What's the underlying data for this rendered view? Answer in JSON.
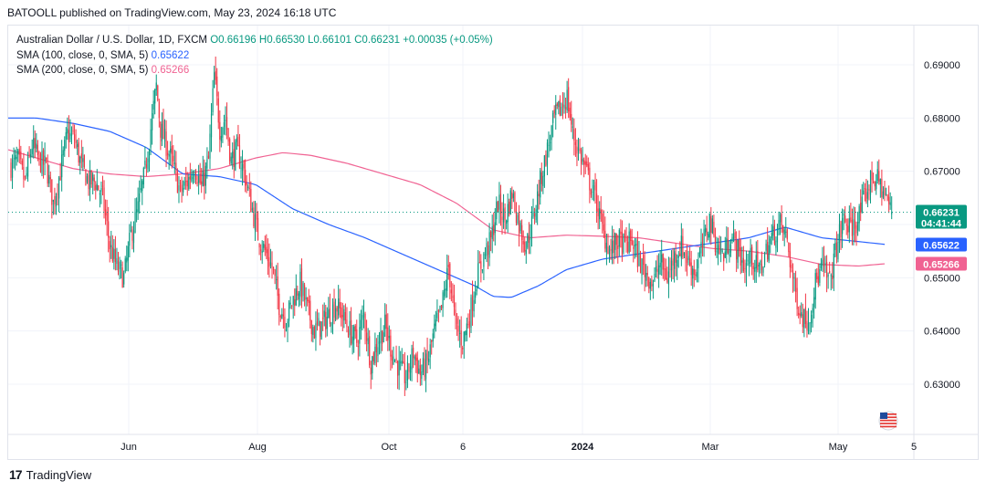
{
  "header": "BATOOLL published on TradingView.com, May 23, 2024 16:18 UTC",
  "legend": {
    "symbol": "Australian Dollar / U.S. Dollar, 1D, FXCM",
    "ohlc": "O0.66196 H0.66530 L0.66101 C0.66231 +0.00035 (+0.05%)",
    "sma100_label": "SMA (100, close, 0, SMA, 5)",
    "sma100_value": "0.65622",
    "sma200_label": "SMA (200, close, 0, SMA, 5)",
    "sma200_value": "0.65266"
  },
  "price_tags": {
    "last": "0.66231",
    "countdown": "04:41:44",
    "sma100": "0.65622",
    "sma200": "0.65266"
  },
  "footer": {
    "brand": "TradingView"
  },
  "colors": {
    "up": "#089981",
    "down": "#f23645",
    "sma100": "#2962ff",
    "sma200": "#f06292",
    "grid": "#f0f3fa"
  },
  "chart_data": {
    "type": "candlestick",
    "y_ticks": [
      0.63,
      0.64,
      0.65,
      0.66,
      0.67,
      0.68,
      0.69
    ],
    "y_tick_labels": [
      "0.63000",
      "0.64000",
      "0.65000",
      "0.66000",
      "0.67000",
      "0.68000",
      "0.69000"
    ],
    "ylim": [
      0.621,
      0.6985
    ],
    "x_tick_labels": [
      "Jun",
      "Aug",
      "Oct",
      "6",
      "2024",
      "Mar",
      "May",
      "5"
    ],
    "last_close": 0.66231,
    "close_anchors": [
      [
        0,
        0.671
      ],
      [
        5,
        0.672
      ],
      [
        10,
        0.668
      ],
      [
        15,
        0.675
      ],
      [
        20,
        0.672
      ],
      [
        25,
        0.671
      ],
      [
        30,
        0.664
      ],
      [
        35,
        0.67
      ],
      [
        40,
        0.677
      ],
      [
        45,
        0.676
      ],
      [
        50,
        0.671
      ],
      [
        55,
        0.668
      ],
      [
        60,
        0.668
      ],
      [
        65,
        0.665
      ],
      [
        70,
        0.656
      ],
      [
        75,
        0.652
      ],
      [
        80,
        0.65
      ],
      [
        85,
        0.658
      ],
      [
        90,
        0.663
      ],
      [
        95,
        0.67
      ],
      [
        100,
        0.68
      ],
      [
        103,
        0.686
      ],
      [
        106,
        0.678
      ],
      [
        110,
        0.675
      ],
      [
        115,
        0.671
      ],
      [
        120,
        0.666
      ],
      [
        125,
        0.668
      ],
      [
        130,
        0.671
      ],
      [
        135,
        0.667
      ],
      [
        140,
        0.672
      ],
      [
        144,
        0.688
      ],
      [
        148,
        0.678
      ],
      [
        152,
        0.68
      ],
      [
        156,
        0.672
      ],
      [
        160,
        0.674
      ],
      [
        165,
        0.67
      ],
      [
        170,
        0.664
      ],
      [
        175,
        0.658
      ],
      [
        180,
        0.655
      ],
      [
        185,
        0.652
      ],
      [
        190,
        0.645
      ],
      [
        195,
        0.642
      ],
      [
        200,
        0.646
      ],
      [
        205,
        0.649
      ],
      [
        210,
        0.644
      ],
      [
        215,
        0.64
      ],
      [
        220,
        0.641
      ],
      [
        225,
        0.643
      ],
      [
        230,
        0.645
      ],
      [
        235,
        0.643
      ],
      [
        240,
        0.64
      ],
      [
        245,
        0.638
      ],
      [
        250,
        0.643
      ],
      [
        255,
        0.634
      ],
      [
        260,
        0.638
      ],
      [
        265,
        0.641
      ],
      [
        270,
        0.636
      ],
      [
        275,
        0.633
      ],
      [
        280,
        0.631
      ],
      [
        285,
        0.636
      ],
      [
        290,
        0.632
      ],
      [
        295,
        0.634
      ],
      [
        300,
        0.64
      ],
      [
        305,
        0.644
      ],
      [
        310,
        0.652
      ],
      [
        315,
        0.641
      ],
      [
        320,
        0.638
      ],
      [
        325,
        0.643
      ],
      [
        330,
        0.65
      ],
      [
        335,
        0.654
      ],
      [
        340,
        0.657
      ],
      [
        345,
        0.664
      ],
      [
        350,
        0.661
      ],
      [
        355,
        0.666
      ],
      [
        360,
        0.66
      ],
      [
        365,
        0.656
      ],
      [
        370,
        0.661
      ],
      [
        375,
        0.668
      ],
      [
        380,
        0.674
      ],
      [
        385,
        0.68
      ],
      [
        390,
        0.682
      ],
      [
        394,
        0.684
      ],
      [
        398,
        0.677
      ],
      [
        402,
        0.674
      ],
      [
        406,
        0.671
      ],
      [
        410,
        0.668
      ],
      [
        415,
        0.664
      ],
      [
        420,
        0.658
      ],
      [
        425,
        0.655
      ],
      [
        430,
        0.657
      ],
      [
        435,
        0.656
      ],
      [
        440,
        0.657
      ],
      [
        445,
        0.653
      ],
      [
        450,
        0.651
      ],
      [
        455,
        0.649
      ],
      [
        460,
        0.653
      ],
      [
        465,
        0.65
      ],
      [
        470,
        0.654
      ],
      [
        475,
        0.656
      ],
      [
        480,
        0.653
      ],
      [
        485,
        0.651
      ],
      [
        490,
        0.656
      ],
      [
        495,
        0.661
      ],
      [
        500,
        0.656
      ],
      [
        505,
        0.654
      ],
      [
        510,
        0.658
      ],
      [
        515,
        0.655
      ],
      [
        520,
        0.652
      ],
      [
        525,
        0.654
      ],
      [
        530,
        0.651
      ],
      [
        535,
        0.655
      ],
      [
        540,
        0.658
      ],
      [
        545,
        0.66
      ],
      [
        550,
        0.657
      ],
      [
        555,
        0.648
      ],
      [
        560,
        0.643
      ],
      [
        565,
        0.642
      ],
      [
        570,
        0.649
      ],
      [
        575,
        0.652
      ],
      [
        580,
        0.649
      ],
      [
        585,
        0.656
      ],
      [
        590,
        0.661
      ],
      [
        595,
        0.659
      ],
      [
        600,
        0.661
      ],
      [
        605,
        0.665
      ],
      [
        610,
        0.669
      ],
      [
        615,
        0.668
      ],
      [
        620,
        0.665
      ],
      [
        624,
        0.66231
      ]
    ],
    "sma100_anchors": [
      [
        0,
        0.68
      ],
      [
        40,
        0.68
      ],
      [
        80,
        0.679
      ],
      [
        120,
        0.6775
      ],
      [
        160,
        0.6745
      ],
      [
        180,
        0.672
      ],
      [
        200,
        0.6695
      ],
      [
        240,
        0.669
      ],
      [
        280,
        0.6675
      ],
      [
        320,
        0.663
      ],
      [
        360,
        0.66
      ],
      [
        400,
        0.6575
      ],
      [
        440,
        0.6545
      ],
      [
        480,
        0.6515
      ],
      [
        520,
        0.6485
      ],
      [
        540,
        0.6465
      ],
      [
        560,
        0.6463
      ],
      [
        590,
        0.6485
      ],
      [
        620,
        0.6515
      ],
      [
        660,
        0.6535
      ],
      [
        700,
        0.6545
      ],
      [
        740,
        0.6555
      ],
      [
        780,
        0.6565
      ],
      [
        820,
        0.6575
      ],
      [
        860,
        0.6595
      ],
      [
        900,
        0.6575
      ],
      [
        940,
        0.6568
      ],
      [
        972,
        0.65622
      ]
    ],
    "sma200_anchors": [
      [
        0,
        0.6745
      ],
      [
        40,
        0.6725
      ],
      [
        80,
        0.6705
      ],
      [
        120,
        0.6695
      ],
      [
        160,
        0.669
      ],
      [
        200,
        0.6695
      ],
      [
        240,
        0.6705
      ],
      [
        280,
        0.6725
      ],
      [
        310,
        0.6735
      ],
      [
        340,
        0.673
      ],
      [
        380,
        0.6715
      ],
      [
        420,
        0.6695
      ],
      [
        460,
        0.6675
      ],
      [
        500,
        0.664
      ],
      [
        540,
        0.659
      ],
      [
        580,
        0.6575
      ],
      [
        620,
        0.658
      ],
      [
        660,
        0.6578
      ],
      [
        700,
        0.6575
      ],
      [
        740,
        0.6565
      ],
      [
        780,
        0.6555
      ],
      [
        820,
        0.655
      ],
      [
        860,
        0.654
      ],
      [
        900,
        0.6525
      ],
      [
        940,
        0.6522
      ],
      [
        972,
        0.65266
      ]
    ]
  }
}
